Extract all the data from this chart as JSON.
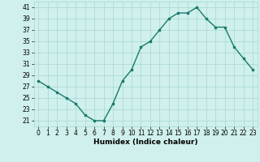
{
  "x": [
    0,
    1,
    2,
    3,
    4,
    5,
    6,
    7,
    8,
    9,
    10,
    11,
    12,
    13,
    14,
    15,
    16,
    17,
    18,
    19,
    20,
    21,
    22,
    23
  ],
  "y": [
    28,
    27,
    26,
    25,
    24,
    22,
    21,
    21,
    24,
    28,
    30,
    34,
    35,
    37,
    39,
    40,
    40,
    41,
    39,
    37.5,
    37.5,
    34,
    32,
    30
  ],
  "line_color": "#1a7a6e",
  "marker": "s",
  "marker_size": 1.8,
  "bg_color": "#cff0ec",
  "grid_color": "#a8d8d0",
  "xlabel": "Humidex (Indice chaleur)",
  "ylim": [
    20,
    42
  ],
  "yticks": [
    21,
    23,
    25,
    27,
    29,
    31,
    33,
    35,
    37,
    39,
    41
  ],
  "xticks": [
    0,
    1,
    2,
    3,
    4,
    5,
    6,
    7,
    8,
    9,
    10,
    11,
    12,
    13,
    14,
    15,
    16,
    17,
    18,
    19,
    20,
    21,
    22,
    23
  ],
  "xlabel_fontsize": 6.5,
  "tick_fontsize": 5.5,
  "line_width": 1.0
}
